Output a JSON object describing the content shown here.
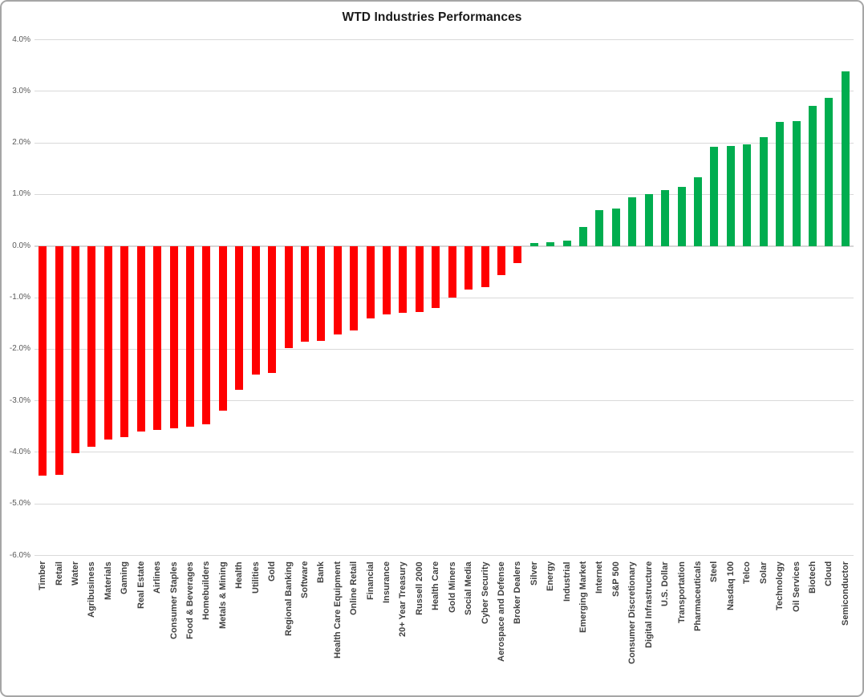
{
  "title": "WTD Industries Performances",
  "chart_data": {
    "type": "bar",
    "title": "WTD Industries Performances",
    "xlabel": "",
    "ylabel": "",
    "ylim": [
      -6.0,
      4.0
    ],
    "ytick_step": 1.0,
    "ytick_labels": [
      "4.0%",
      "3.0%",
      "2.0%",
      "1.0%",
      "0.0%",
      "-1.0%",
      "-2.0%",
      "-3.0%",
      "-4.0%",
      "-5.0%",
      "-6.0%"
    ],
    "grid": true,
    "legend": "none",
    "value_unit": "percent",
    "colors": {
      "negative": "#ff0000",
      "positive": "#00ad4f"
    },
    "categories": [
      "Timber",
      "Retail",
      "Water",
      "Agribusiness",
      "Materials",
      "Gaming",
      "Real Estate",
      "Airlines",
      "Consumer Staples",
      "Food & Beverages",
      "Homebuilders",
      "Metals & Mining",
      "Health",
      "Utilities",
      "Gold",
      "Regional Banking",
      "Software",
      "Bank",
      "Health Care Equipment",
      "Online Retail",
      "Financial",
      "Insurance",
      "20+ Year Treasury",
      "Russell 2000",
      "Health Care",
      "Gold Miners",
      "Social Media",
      "Cyber Security",
      "Aerospace and Defense",
      "Broker Dealers",
      "Silver",
      "Energy",
      "Industrial",
      "Emerging Market",
      "Internet",
      "S&P 500",
      "Consumer Discretionary",
      "Digital Infrastructure",
      "U.S. Dollar",
      "Transportation",
      "Pharmaceuticals",
      "Steel",
      "Nasdaq 100",
      "Telco",
      "Solar",
      "Technology",
      "Oil Services",
      "Biotech",
      "Cloud",
      "Semiconductor"
    ],
    "values": [
      -4.46,
      -4.43,
      -4.02,
      -3.89,
      -3.75,
      -3.71,
      -3.59,
      -3.56,
      -3.54,
      -3.5,
      -3.46,
      -3.2,
      -2.79,
      -2.5,
      -2.46,
      -1.98,
      -1.86,
      -1.84,
      -1.72,
      -1.64,
      -1.4,
      -1.33,
      -1.29,
      -1.28,
      -1.2,
      -1.0,
      -0.85,
      -0.8,
      -0.57,
      -0.33,
      0.05,
      0.08,
      0.1,
      0.37,
      0.7,
      0.72,
      0.95,
      1.01,
      1.08,
      1.15,
      1.34,
      1.92,
      1.94,
      1.97,
      2.11,
      2.41,
      2.42,
      2.72,
      2.88,
      3.39
    ]
  }
}
